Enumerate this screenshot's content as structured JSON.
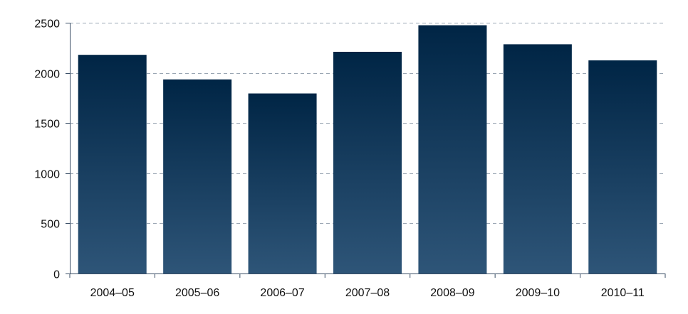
{
  "chart_data": {
    "type": "bar",
    "title": "",
    "xlabel": "",
    "ylabel": "",
    "categories": [
      "2004–05",
      "2005–06",
      "2006–07",
      "2007–08",
      "2008–09",
      "2009–10",
      "2010–11"
    ],
    "values": [
      2180,
      1935,
      1795,
      2210,
      2475,
      2285,
      2125
    ],
    "ylim": [
      0,
      2500
    ],
    "yticks": [
      0,
      500,
      1000,
      1500,
      2000,
      2500
    ],
    "grid": true,
    "legend": "none",
    "colors": {
      "bar_top": "#002545",
      "bar_bottom": "#2e5578",
      "grid": "#9aa6b3",
      "axis": "#3a4e66"
    }
  }
}
